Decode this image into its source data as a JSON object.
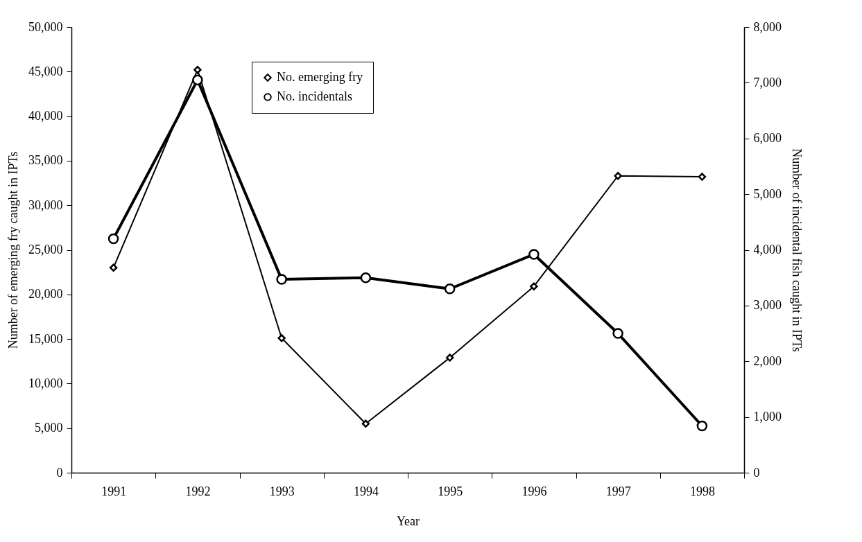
{
  "chart_data": {
    "type": "line",
    "xlabel": "Year",
    "ylabel": "Number of emerging fry caught in IPTs",
    "y2label": "Number of incidental fish caught in IPTs",
    "categories": [
      "1991",
      "1992",
      "1993",
      "1994",
      "1995",
      "1996",
      "1997",
      "1998"
    ],
    "series": [
      {
        "name": "No. emerging fry",
        "color": "#000000",
        "marker": "diamond",
        "values": [
          23000,
          45200,
          15100,
          5500,
          12900,
          20900,
          33300,
          33200
        ]
      },
      {
        "name": "No. incidentals",
        "color": "#000000",
        "marker": "circle",
        "axis": "y2",
        "values": [
          4200,
          7050,
          3470,
          3500,
          3300,
          3920,
          2500,
          840
        ]
      }
    ],
    "ylim": [
      0,
      50000
    ],
    "yticks": [
      0,
      {
        "value": 5000,
        "label": "5,000"
      },
      {
        "value": 10000,
        "label": "10,000"
      },
      {
        "value": 15000,
        "label": "15,000"
      },
      {
        "value": 20000,
        "label": "20,000"
      },
      {
        "value": 25000,
        "label": "25,000"
      },
      {
        "value": 30000,
        "label": "30,000"
      },
      {
        "value": 35000,
        "label": "35,000"
      },
      {
        "value": 40000,
        "label": "40,000"
      },
      {
        "value": 45000,
        "label": "45,000"
      },
      {
        "value": 50000,
        "label": "50,000"
      }
    ],
    "y2lim": [
      0,
      8000
    ],
    "y2ticks": [
      0,
      {
        "value": 1000,
        "label": "1,000"
      },
      {
        "value": 2000,
        "label": "2,000"
      },
      {
        "value": 3000,
        "label": "3,000"
      },
      {
        "value": 4000,
        "label": "4,000"
      },
      {
        "value": 5000,
        "label": "5,000"
      },
      {
        "value": 6000,
        "label": "6,000"
      },
      {
        "value": 7000,
        "label": "7,000"
      },
      {
        "value": 8000,
        "label": "8,000"
      }
    ],
    "grid": false,
    "legend": "top",
    "line_style": "solid"
  }
}
